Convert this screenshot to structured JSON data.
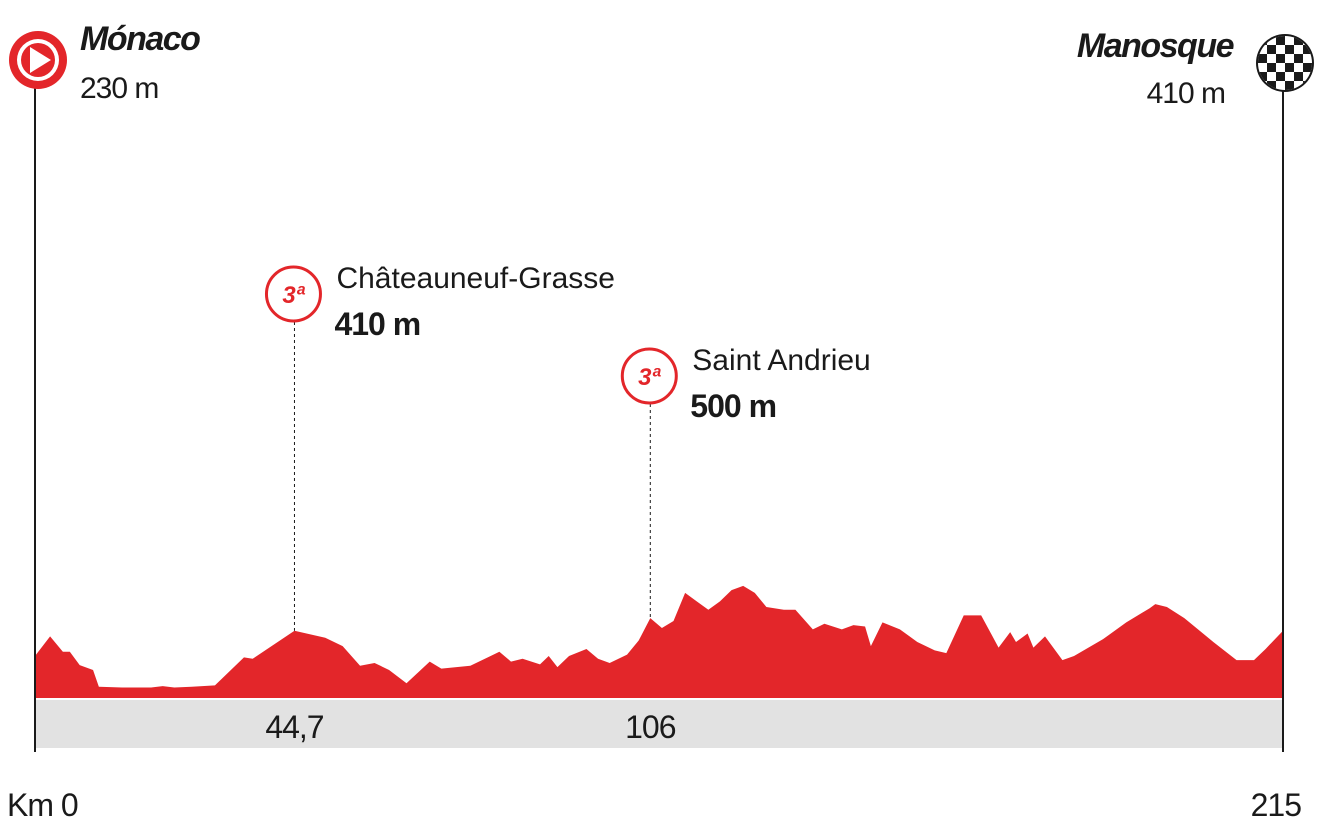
{
  "chart_data": {
    "type": "area",
    "color": "#e3262a",
    "start": {
      "name": "Mónaco",
      "elevation": {
        "value": 230,
        "label": "230 m"
      }
    },
    "finish": {
      "name": "Manosque",
      "elevation": {
        "value": 410,
        "label": "410 m"
      }
    },
    "xlim": [
      0,
      215
    ],
    "ylim": [
      -70,
      4270
    ],
    "xticks": [
      {
        "value": 0,
        "label": "Km 0"
      },
      215
    ],
    "climbs": [
      {
        "name": "Châteauneuf-Grasse",
        "category": "3ª",
        "elevation": {
          "value": 410,
          "label": "410 m"
        },
        "km": {
          "value": 44.7,
          "label": "44,7"
        }
      },
      {
        "name": "Saint Andrieu",
        "category": "3ª",
        "elevation": {
          "value": 500,
          "label": "500 m"
        },
        "km": 106
      }
    ],
    "x": [
      0,
      2.6,
      4.8,
      6,
      7.7,
      10,
      11,
      15,
      20,
      22,
      24,
      27,
      31,
      36,
      37.5,
      44.7,
      50,
      53,
      56,
      58.5,
      61,
      64,
      68,
      70,
      75,
      78,
      80,
      82,
      84,
      87,
      88.5,
      90,
      92,
      95,
      97,
      99,
      102,
      104,
      106,
      108,
      110,
      112,
      114,
      116,
      118,
      120,
      122,
      124,
      126,
      129,
      131,
      134,
      136,
      139,
      141,
      143,
      144,
      146,
      149,
      152,
      155,
      157,
      160,
      163,
      166,
      168,
      169,
      171,
      172,
      174,
      177,
      179,
      184,
      188,
      192,
      193,
      195,
      198,
      203,
      207,
      210,
      212,
      215
    ],
    "values": [
      230,
      370,
      260,
      260,
      165,
      130,
      10,
      5,
      5,
      15,
      5,
      10,
      20,
      220,
      210,
      410,
      360,
      300,
      160,
      180,
      130,
      35,
      190,
      140,
      160,
      220,
      260,
      190,
      210,
      170,
      230,
      150,
      230,
      280,
      210,
      180,
      240,
      340,
      500,
      430,
      480,
      680,
      620,
      560,
      620,
      700,
      730,
      680,
      580,
      560,
      560,
      420,
      460,
      420,
      450,
      440,
      300,
      470,
      420,
      330,
      270,
      250,
      520,
      520,
      290,
      400,
      330,
      390,
      290,
      370,
      200,
      230,
      350,
      470,
      570,
      600,
      580,
      500,
      330,
      200,
      200,
      280,
      410
    ]
  }
}
